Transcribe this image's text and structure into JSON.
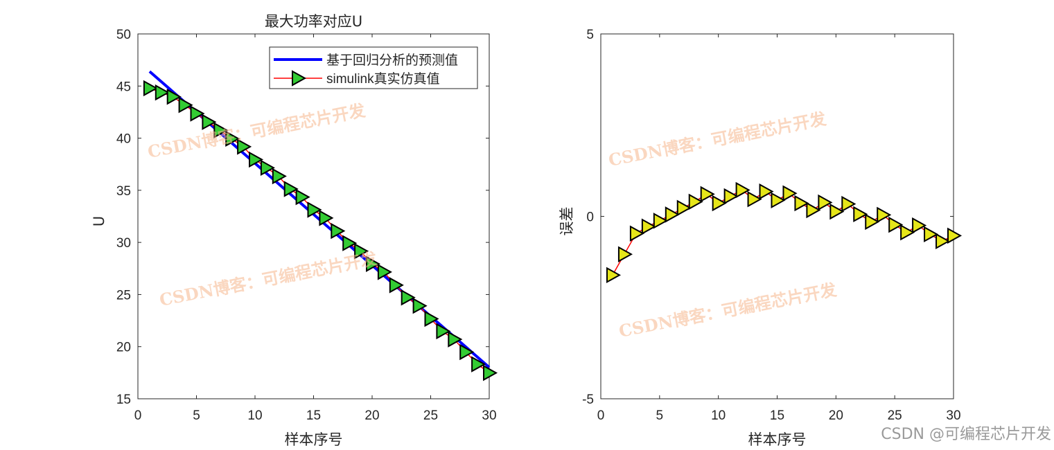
{
  "chart_data": [
    {
      "type": "line",
      "title": "最大功率对应U",
      "xlabel": "样本序号",
      "ylabel": "U",
      "xlim": [
        0,
        30
      ],
      "ylim": [
        15,
        50
      ],
      "xticks": [
        "0",
        "5",
        "10",
        "15",
        "20",
        "25",
        "30"
      ],
      "yticks": [
        "15",
        "20",
        "25",
        "30",
        "35",
        "40",
        "45",
        "50"
      ],
      "legend_position": "top-right",
      "x": [
        1,
        2,
        3,
        4,
        5,
        6,
        7,
        8,
        9,
        10,
        11,
        12,
        13,
        14,
        15,
        16,
        17,
        18,
        19,
        20,
        21,
        22,
        23,
        24,
        25,
        26,
        27,
        28,
        29,
        30
      ],
      "series": [
        {
          "name": "基于回归分析的预测值",
          "color": "#0000ff",
          "marker": "none",
          "values": [
            46.4,
            45.42,
            44.44,
            43.46,
            42.48,
            41.5,
            40.53,
            39.55,
            38.57,
            37.59,
            36.61,
            35.63,
            34.65,
            33.67,
            32.69,
            31.71,
            30.74,
            29.76,
            28.78,
            27.8,
            26.82,
            25.84,
            24.86,
            23.88,
            22.9,
            21.92,
            20.95,
            19.97,
            18.99,
            18.01
          ]
        },
        {
          "name": "simulink真实仿真值",
          "color": "#ff0000",
          "marker": "triangle-right",
          "marker_fill": "#33cc33",
          "values": [
            44.79,
            44.38,
            43.97,
            43.18,
            42.36,
            41.55,
            40.76,
            39.95,
            39.18,
            37.95,
            37.16,
            36.35,
            35.12,
            34.35,
            33.13,
            32.34,
            31.1,
            29.93,
            29.16,
            27.93,
            27.16,
            25.9,
            24.71,
            23.92,
            22.67,
            21.48,
            20.7,
            19.48,
            18.31,
            17.48
          ]
        }
      ]
    },
    {
      "type": "line",
      "title": "",
      "xlabel": "样本序号",
      "ylabel": "误差",
      "xlim": [
        0,
        30
      ],
      "ylim": [
        -5,
        5
      ],
      "xticks": [
        "0",
        "5",
        "10",
        "15",
        "20",
        "25",
        "30"
      ],
      "yticks": [
        "-5",
        "0",
        "5"
      ],
      "x": [
        1,
        2,
        3,
        4,
        5,
        6,
        7,
        8,
        9,
        10,
        11,
        12,
        13,
        14,
        15,
        16,
        17,
        18,
        19,
        20,
        21,
        22,
        23,
        24,
        25,
        26,
        27,
        28,
        29,
        30
      ],
      "series": [
        {
          "name": "误差",
          "color": "#ff0000",
          "marker": "triangle-right",
          "marker_fill": "#e6e619",
          "values": [
            -1.61,
            -1.04,
            -0.47,
            -0.28,
            -0.12,
            0.05,
            0.23,
            0.4,
            0.61,
            0.36,
            0.55,
            0.72,
            0.47,
            0.68,
            0.44,
            0.63,
            0.36,
            0.17,
            0.38,
            0.13,
            0.34,
            0.06,
            -0.15,
            0.04,
            -0.23,
            -0.44,
            -0.25,
            -0.49,
            -0.68,
            -0.53
          ]
        }
      ]
    }
  ],
  "watermark": "CSDN博客：可编程芯片开发",
  "credit": "CSDN @可编程芯片开发"
}
